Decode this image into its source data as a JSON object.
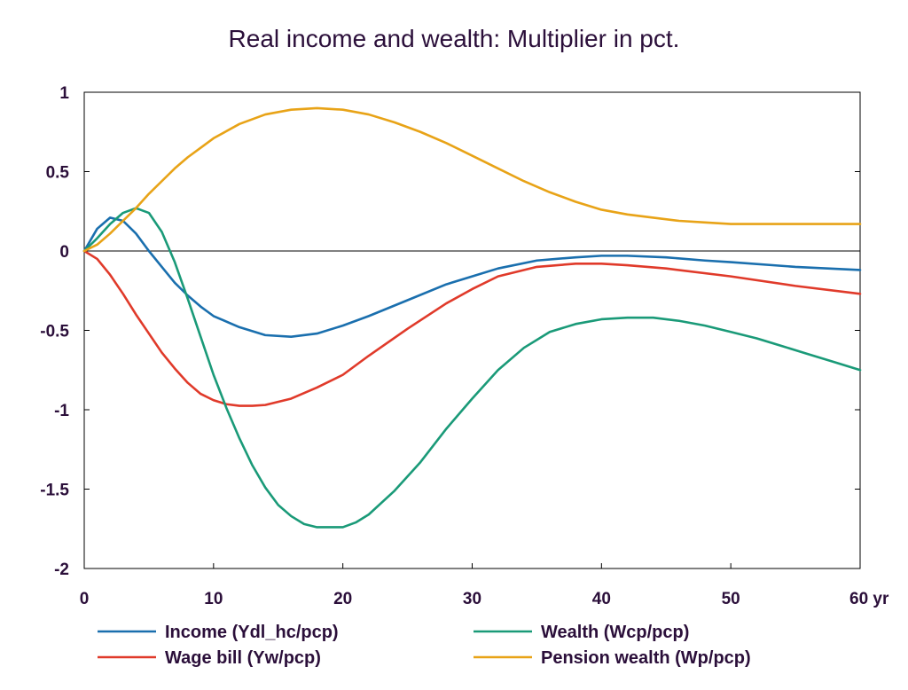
{
  "chart_data": {
    "type": "line",
    "title": "Real income and wealth: Multiplier in pct.",
    "x_unit_label": "yr",
    "xlim": [
      0,
      60
    ],
    "ylim": [
      -2,
      1
    ],
    "x_ticks": [
      0,
      10,
      20,
      30,
      40,
      50,
      60
    ],
    "x_tick_labels": [
      "0",
      "10",
      "20",
      "30",
      "40",
      "50",
      "60 yr"
    ],
    "y_ticks": [
      1,
      0.5,
      0,
      -0.5,
      -1,
      -1.5,
      -2
    ],
    "y_tick_labels": [
      "1",
      "0.5",
      "0",
      "-0.5",
      "-1",
      "-1.5",
      "-2"
    ],
    "zero_line": true,
    "grid": false,
    "legend_position": "bottom",
    "series": [
      {
        "name": "Income (Ydl_hc/pcp)",
        "color": "#1a6fae",
        "x": [
          0,
          1,
          2,
          3,
          4,
          5,
          6,
          7,
          8,
          9,
          10,
          12,
          14,
          16,
          18,
          20,
          22,
          25,
          28,
          30,
          32,
          35,
          38,
          40,
          42,
          45,
          48,
          50,
          55,
          60
        ],
        "values": [
          0,
          0.14,
          0.21,
          0.19,
          0.11,
          0.0,
          -0.1,
          -0.2,
          -0.28,
          -0.35,
          -0.41,
          -0.48,
          -0.53,
          -0.54,
          -0.52,
          -0.47,
          -0.41,
          -0.31,
          -0.21,
          -0.16,
          -0.11,
          -0.06,
          -0.04,
          -0.03,
          -0.03,
          -0.04,
          -0.06,
          -0.07,
          -0.1,
          -0.12
        ]
      },
      {
        "name": "Wage bill (Yw/pcp)",
        "color": "#e03a2a",
        "x": [
          0,
          1,
          2,
          3,
          4,
          5,
          6,
          7,
          8,
          9,
          10,
          11,
          12,
          13,
          14,
          16,
          18,
          20,
          22,
          25,
          28,
          30,
          32,
          35,
          38,
          40,
          42,
          45,
          50,
          55,
          60
        ],
        "values": [
          0,
          -0.05,
          -0.15,
          -0.27,
          -0.4,
          -0.52,
          -0.64,
          -0.74,
          -0.83,
          -0.9,
          -0.94,
          -0.965,
          -0.975,
          -0.975,
          -0.97,
          -0.93,
          -0.86,
          -0.78,
          -0.66,
          -0.49,
          -0.33,
          -0.24,
          -0.16,
          -0.1,
          -0.08,
          -0.08,
          -0.09,
          -0.11,
          -0.16,
          -0.22,
          -0.27
        ]
      },
      {
        "name": "Wealth (Wcp/pcp)",
        "color": "#1a9a78",
        "x": [
          0,
          1,
          2,
          3,
          4,
          5,
          6,
          7,
          8,
          9,
          10,
          11,
          12,
          13,
          14,
          15,
          16,
          17,
          18,
          19,
          20,
          21,
          22,
          24,
          26,
          28,
          30,
          32,
          34,
          36,
          38,
          40,
          42,
          44,
          46,
          48,
          50,
          52,
          54,
          56,
          58,
          60
        ],
        "values": [
          0,
          0.08,
          0.17,
          0.24,
          0.27,
          0.24,
          0.12,
          -0.07,
          -0.3,
          -0.54,
          -0.78,
          -0.99,
          -1.18,
          -1.35,
          -1.49,
          -1.6,
          -1.67,
          -1.72,
          -1.74,
          -1.74,
          -1.74,
          -1.71,
          -1.66,
          -1.51,
          -1.33,
          -1.12,
          -0.93,
          -0.75,
          -0.61,
          -0.51,
          -0.46,
          -0.43,
          -0.42,
          -0.42,
          -0.44,
          -0.47,
          -0.51,
          -0.55,
          -0.6,
          -0.65,
          -0.7,
          -0.75
        ]
      },
      {
        "name": "Pension wealth (Wp/pcp)",
        "color": "#e8a317",
        "x": [
          0,
          1,
          2,
          3,
          4,
          5,
          6,
          7,
          8,
          9,
          10,
          12,
          14,
          16,
          18,
          20,
          22,
          24,
          26,
          28,
          30,
          32,
          34,
          36,
          38,
          40,
          42,
          44,
          46,
          48,
          50,
          52,
          55,
          60
        ],
        "values": [
          0,
          0.04,
          0.11,
          0.19,
          0.27,
          0.36,
          0.44,
          0.52,
          0.59,
          0.65,
          0.71,
          0.8,
          0.86,
          0.89,
          0.9,
          0.89,
          0.86,
          0.81,
          0.75,
          0.68,
          0.6,
          0.52,
          0.44,
          0.37,
          0.31,
          0.26,
          0.23,
          0.21,
          0.19,
          0.18,
          0.17,
          0.17,
          0.17,
          0.17
        ]
      }
    ]
  }
}
